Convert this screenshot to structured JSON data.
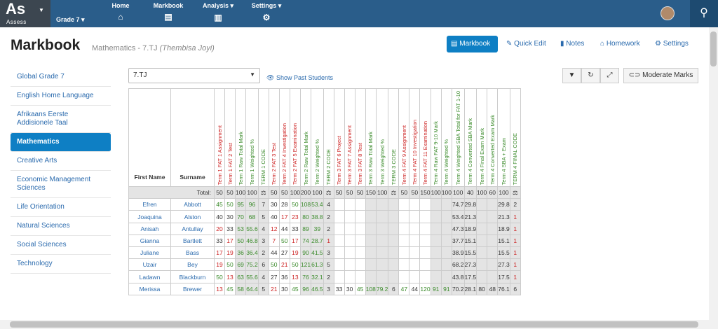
{
  "app": {
    "logo": "As",
    "logo_sub": "Assess",
    "grade": "Grade 7"
  },
  "nav": [
    {
      "label": "Home",
      "icon": "home-icon"
    },
    {
      "label": "Markbook",
      "icon": "book-icon"
    },
    {
      "label": "Analysis",
      "icon": "bar-chart-icon"
    },
    {
      "label": "Settings",
      "icon": "gear-icon"
    }
  ],
  "page": {
    "title": "Markbook",
    "subtitle": "Mathematics - 7.TJ",
    "teacher": "(Thembisa Joyi)"
  },
  "actions": {
    "markbook": "Markbook",
    "quick_edit": "Quick Edit",
    "notes": "Notes",
    "homework": "Homework",
    "settings": "Settings"
  },
  "sidebar": [
    "Global Grade 7",
    "English Home Language",
    "Afrikaans Eerste Addisionele Taal",
    "Mathematics",
    "Creative Arts",
    "Economic Management Sciences",
    "Life Orientation",
    "Natural Sciences",
    "Social Sciences",
    "Technology"
  ],
  "class_select": "7.TJ",
  "show_past": "Show Past Students",
  "moderate": "Moderate Marks",
  "table": {
    "first_name": "First Name",
    "surname": "Surname",
    "total_label": "Total:",
    "columns": [
      {
        "label": "Term 1 FAT 1 Assignment",
        "color": "red",
        "total": "50"
      },
      {
        "label": "Term 1 FAT 2 Test",
        "color": "red",
        "total": "50"
      },
      {
        "label": "Term 1 Raw Total Mark",
        "color": "green",
        "total": "100"
      },
      {
        "label": "Term 1 Weighted %",
        "color": "green",
        "total": "100"
      },
      {
        "label": "TERM 1 CODE",
        "color": "green",
        "total": "⚖"
      },
      {
        "label": "Term 2 FAT 3 Test",
        "color": "red",
        "total": "50"
      },
      {
        "label": "Term 2 FAT 4 Investigation",
        "color": "red",
        "total": "50"
      },
      {
        "label": "Term 2 FAT 5 Examination",
        "color": "red",
        "total": "100"
      },
      {
        "label": "Term 2 Raw Total Mark",
        "color": "green",
        "total": "200"
      },
      {
        "label": "Term 2 Weighted %",
        "color": "green",
        "total": "100"
      },
      {
        "label": "TERM 2 CODE",
        "color": "green",
        "total": "⚖"
      },
      {
        "label": "Term 3 FAT 6 Project",
        "color": "red",
        "total": "50"
      },
      {
        "label": "Term 3 FAT 7 Assignment",
        "color": "red",
        "total": "50"
      },
      {
        "label": "Term 3 FAT 8 Test",
        "color": "red",
        "total": "50"
      },
      {
        "label": "Term 3 Raw Total Mark",
        "color": "green",
        "total": "150"
      },
      {
        "label": "Term 3 Weighted %",
        "color": "green",
        "total": "100"
      },
      {
        "label": "TERM 3 CODE",
        "color": "green",
        "total": "⚖"
      },
      {
        "label": "Term 4 FAT 9 Assignment",
        "color": "red",
        "total": "50"
      },
      {
        "label": "Term 4 FAT 10 Investigation",
        "color": "red",
        "total": "50"
      },
      {
        "label": "Term 4 FAT 11 Examination",
        "color": "red",
        "total": "150"
      },
      {
        "label": "Term 4 Raw FAT 9-10 Mark",
        "color": "green",
        "total": "100"
      },
      {
        "label": "Term 4 Weighted %",
        "color": "green",
        "total": "100"
      },
      {
        "label": "Term 4 Weighted SBA Total for FAT 1-10",
        "color": "green",
        "total": "100"
      },
      {
        "label": "Term 4 Converted SBA Mark",
        "color": "green",
        "total": "40"
      },
      {
        "label": "Term 4 Final Exam Mark",
        "color": "green",
        "total": "100"
      },
      {
        "label": "Term 4 Converted Exam Mark",
        "color": "green",
        "total": "60"
      },
      {
        "label": "Term 4 SBA + Exam",
        "color": "green",
        "total": "100"
      },
      {
        "label": "TERM 4 FINAL CODE",
        "color": "green",
        "total": "⚖"
      }
    ],
    "rows": [
      {
        "first": "Efren",
        "surname": "Abbott",
        "marks": [
          "45",
          "50",
          "95",
          "96",
          "7",
          "30",
          "28",
          "50",
          "108",
          "53.4",
          "4",
          "",
          "",
          "",
          "",
          "",
          "",
          "",
          "",
          "",
          "",
          "",
          "74.7",
          "29.8",
          "",
          "",
          "29.8",
          "2"
        ]
      },
      {
        "first": "Joaquina",
        "surname": "Alston",
        "marks": [
          "40",
          "30",
          "70",
          "68",
          "5",
          "40",
          "17",
          "23",
          "80",
          "38.8",
          "2",
          "",
          "",
          "",
          "",
          "",
          "",
          "",
          "",
          "",
          "",
          "",
          "53.4",
          "21.3",
          "",
          "",
          "21.3",
          "1"
        ]
      },
      {
        "first": "Anisah",
        "surname": "Antullay",
        "marks": [
          "20",
          "33",
          "53",
          "55.6",
          "4",
          "12",
          "44",
          "33",
          "89",
          "39",
          "2",
          "",
          "",
          "",
          "",
          "",
          "",
          "",
          "",
          "",
          "",
          "",
          "47.3",
          "18.9",
          "",
          "",
          "18.9",
          "1"
        ]
      },
      {
        "first": "Gianna",
        "surname": "Bartlett",
        "marks": [
          "33",
          "17",
          "50",
          "46.8",
          "3",
          "7",
          "50",
          "17",
          "74",
          "28.7",
          "1",
          "",
          "",
          "",
          "",
          "",
          "",
          "",
          "",
          "",
          "",
          "",
          "37.7",
          "15.1",
          "",
          "",
          "15.1",
          "1"
        ]
      },
      {
        "first": "Juliane",
        "surname": "Bass",
        "marks": [
          "17",
          "19",
          "36",
          "36.4",
          "2",
          "44",
          "27",
          "19",
          "90",
          "41.5",
          "3",
          "",
          "",
          "",
          "",
          "",
          "",
          "",
          "",
          "",
          "",
          "",
          "38.9",
          "15.5",
          "",
          "",
          "15.5",
          "1"
        ]
      },
      {
        "first": "Uzair",
        "surname": "Bey",
        "marks": [
          "19",
          "50",
          "69",
          "75.2",
          "6",
          "50",
          "21",
          "50",
          "121",
          "61.3",
          "5",
          "",
          "",
          "",
          "",
          "",
          "",
          "",
          "",
          "",
          "",
          "",
          "68.2",
          "27.3",
          "",
          "",
          "27.3",
          "1"
        ]
      },
      {
        "first": "Ladawn",
        "surname": "Blackburn",
        "marks": [
          "50",
          "13",
          "63",
          "55.6",
          "4",
          "27",
          "36",
          "13",
          "76",
          "32.1",
          "2",
          "",
          "",
          "",
          "",
          "",
          "",
          "",
          "",
          "",
          "",
          "",
          "43.8",
          "17.5",
          "",
          "",
          "17.5",
          "1"
        ]
      },
      {
        "first": "Merissa",
        "surname": "Brewer",
        "marks": [
          "13",
          "45",
          "58",
          "64.4",
          "5",
          "21",
          "30",
          "45",
          "96",
          "46.5",
          "3",
          "33",
          "30",
          "45",
          "108",
          "79.2",
          "6",
          "47",
          "44",
          "120",
          "91",
          "91",
          "70.2",
          "28.1",
          "80",
          "48",
          "76.1",
          "6"
        ]
      }
    ]
  }
}
